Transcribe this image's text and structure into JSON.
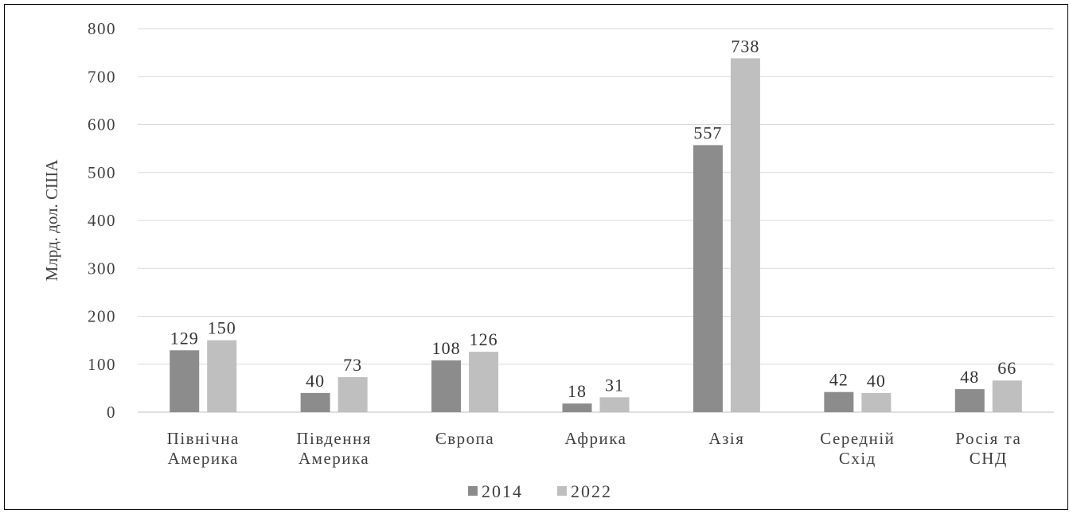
{
  "chart_data": {
    "type": "bar",
    "title": "",
    "xlabel": "",
    "ylabel": "Млрд. дол. США",
    "ylim": [
      0,
      800
    ],
    "yticks": [
      0,
      100,
      200,
      300,
      400,
      500,
      600,
      700,
      800
    ],
    "grid": true,
    "legend_position": "bottom",
    "categories": [
      [
        "Північна",
        "Америка"
      ],
      [
        "Південня",
        "Америка"
      ],
      [
        "Європа"
      ],
      [
        "Африка"
      ],
      [
        "Азія"
      ],
      [
        "Середній",
        "Схід"
      ],
      [
        "Росія та",
        "СНД"
      ]
    ],
    "series": [
      {
        "name": "2014",
        "color": "#8c8c8c",
        "values": [
          129,
          40,
          108,
          18,
          557,
          42,
          48
        ]
      },
      {
        "name": "2022",
        "color": "#bfbfbf",
        "values": [
          150,
          73,
          126,
          31,
          738,
          40,
          66
        ]
      }
    ]
  }
}
